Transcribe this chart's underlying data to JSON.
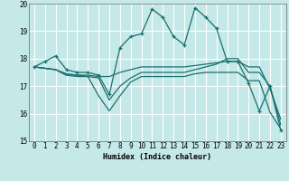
{
  "title": "",
  "xlabel": "Humidex (Indice chaleur)",
  "xlim": [
    -0.5,
    23.5
  ],
  "ylim": [
    15,
    20
  ],
  "yticks": [
    15,
    16,
    17,
    18,
    19,
    20
  ],
  "xticks": [
    0,
    1,
    2,
    3,
    4,
    5,
    6,
    7,
    8,
    9,
    10,
    11,
    12,
    13,
    14,
    15,
    16,
    17,
    18,
    19,
    20,
    21,
    22,
    23
  ],
  "background_color": "#c5e8e8",
  "grid_color": "#ffffff",
  "line_color": "#1a7070",
  "series": [
    {
      "x": [
        0,
        1,
        2,
        3,
        4,
        5,
        6,
        7,
        8,
        9,
        10,
        11,
        12,
        13,
        14,
        15,
        16,
        17,
        18,
        19,
        20,
        21,
        22,
        23
      ],
      "y": [
        17.7,
        17.9,
        18.1,
        17.6,
        17.5,
        17.5,
        17.4,
        16.7,
        18.4,
        18.8,
        18.9,
        19.8,
        19.5,
        18.8,
        18.5,
        19.85,
        19.5,
        19.1,
        17.9,
        17.9,
        17.1,
        16.1,
        17.0,
        15.4
      ],
      "marker": "+",
      "linestyle": "-"
    },
    {
      "x": [
        0,
        2,
        3,
        4,
        5,
        6,
        7,
        8,
        9,
        10,
        11,
        12,
        13,
        14,
        15,
        16,
        17,
        18,
        19,
        20,
        21,
        22,
        23
      ],
      "y": [
        17.7,
        17.6,
        17.4,
        17.35,
        17.35,
        16.65,
        16.1,
        16.65,
        17.15,
        17.35,
        17.35,
        17.35,
        17.35,
        17.35,
        17.45,
        17.5,
        17.5,
        17.5,
        17.5,
        17.2,
        17.2,
        16.05,
        15.45
      ],
      "marker": null,
      "linestyle": "-"
    },
    {
      "x": [
        0,
        2,
        3,
        4,
        5,
        6,
        7,
        8,
        9,
        10,
        11,
        12,
        13,
        14,
        15,
        16,
        17,
        18,
        19,
        20,
        21,
        22,
        23
      ],
      "y": [
        17.7,
        17.6,
        17.45,
        17.4,
        17.4,
        17.35,
        17.35,
        17.5,
        17.6,
        17.7,
        17.7,
        17.7,
        17.7,
        17.7,
        17.75,
        17.8,
        17.85,
        17.9,
        17.9,
        17.7,
        17.7,
        16.9,
        15.8
      ],
      "marker": null,
      "linestyle": "-"
    },
    {
      "x": [
        0,
        2,
        3,
        4,
        5,
        6,
        7,
        8,
        9,
        10,
        11,
        12,
        13,
        14,
        15,
        16,
        17,
        18,
        19,
        20,
        21,
        22,
        23
      ],
      "y": [
        17.7,
        17.6,
        17.4,
        17.4,
        17.35,
        17.3,
        16.5,
        17.0,
        17.3,
        17.5,
        17.5,
        17.5,
        17.5,
        17.5,
        17.6,
        17.7,
        17.8,
        18.0,
        18.0,
        17.5,
        17.5,
        17.0,
        15.6
      ],
      "marker": null,
      "linestyle": "-"
    }
  ]
}
